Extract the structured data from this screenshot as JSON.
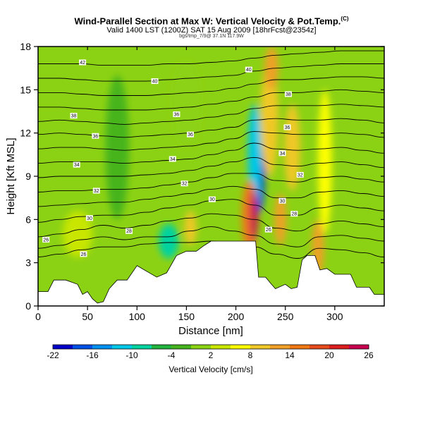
{
  "header": {
    "title": "Wind-Parallel Section at Max W: Vertical Velocity & Pot.Temp.",
    "copyright": "(C)",
    "valid_line": "Valid 1400 LST (1200Z) SAT 15 Aug 2009",
    "model_tag": "[18hrFcst@2354z]",
    "credit": "bgs/tmp_7/9@ 37.1N 117.9W"
  },
  "chart_data": {
    "type": "heatmap",
    "title": "Wind-Parallel Section at Max W: Vertical Velocity & Pot.Temp.",
    "xlabel": "Distance [nm]",
    "ylabel": "Height [Kft MSL]",
    "xlim": [
      0,
      350
    ],
    "ylim": [
      0,
      18
    ],
    "x_ticks": [
      "0",
      "50",
      "100",
      "150",
      "200",
      "250",
      "300"
    ],
    "x_tick_values": [
      0,
      50,
      100,
      150,
      200,
      250,
      300
    ],
    "y_ticks": [
      "0",
      "3",
      "6",
      "9",
      "12",
      "15",
      "18"
    ],
    "y_tick_values": [
      0,
      3,
      6,
      9,
      12,
      15,
      18
    ],
    "terrain": [
      [
        0,
        1
      ],
      [
        10,
        1
      ],
      [
        16,
        1.8
      ],
      [
        28,
        1.8
      ],
      [
        40,
        1.5
      ],
      [
        45,
        0.8
      ],
      [
        50,
        1
      ],
      [
        55,
        0.5
      ],
      [
        60,
        0.2
      ],
      [
        66,
        0.3
      ],
      [
        72,
        1.2
      ],
      [
        80,
        1.8
      ],
      [
        90,
        1.8
      ],
      [
        100,
        2.8
      ],
      [
        120,
        2
      ],
      [
        130,
        2.3
      ],
      [
        140,
        3.5
      ],
      [
        150,
        3.8
      ],
      [
        160,
        3.8
      ],
      [
        168,
        4.2
      ],
      [
        175,
        4.5
      ],
      [
        220,
        4.5
      ],
      [
        223,
        2
      ],
      [
        230,
        2
      ],
      [
        236,
        1.5
      ],
      [
        240,
        1.2
      ],
      [
        250,
        1.5
      ],
      [
        256,
        1.2
      ],
      [
        262,
        1.3
      ],
      [
        267,
        3.2
      ],
      [
        272,
        3.5
      ],
      [
        280,
        3.5
      ],
      [
        285,
        2.5
      ],
      [
        292,
        2.6
      ],
      [
        300,
        2.2
      ],
      [
        308,
        2.2
      ],
      [
        316,
        2.2
      ],
      [
        322,
        1.3
      ],
      [
        335,
        1.3
      ],
      [
        340,
        0.8
      ],
      [
        350,
        0.8
      ]
    ],
    "contours": [
      {
        "y": [
          3.4,
          3.6,
          3.9,
          4.1,
          4.1,
          4.3,
          4.4,
          4.4,
          4.5,
          4.3,
          4.1,
          3.6,
          3.3,
          4.0,
          3.9,
          3.7,
          3.4
        ]
      },
      {
        "y": [
          4.0,
          4.2,
          4.6,
          4.8,
          4.6,
          4.8,
          4.8,
          5.2,
          5.5,
          5.2,
          4.9,
          4.3,
          4.1,
          4.8,
          4.9,
          4.7,
          4.5
        ]
      },
      {
        "y": [
          4.8,
          5.0,
          5.3,
          5.6,
          5.4,
          5.6,
          5.9,
          6.1,
          6.4,
          6.3,
          6.0,
          5.4,
          5.2,
          5.7,
          5.9,
          5.7,
          5.5
        ]
      },
      {
        "y": [
          5.8,
          6.0,
          6.2,
          6.3,
          6.3,
          6.5,
          6.8,
          7.0,
          7.3,
          7.4,
          7.0,
          6.3,
          6.3,
          6.8,
          7.0,
          6.8,
          6.6
        ]
      },
      {
        "y": [
          6.9,
          7.0,
          7.1,
          7.2,
          7.2,
          7.4,
          7.6,
          7.8,
          8.1,
          8.3,
          8.1,
          7.5,
          7.5,
          7.9,
          8.0,
          7.8,
          7.6
        ]
      },
      {
        "y": [
          7.9,
          8.0,
          8.0,
          8.1,
          8.1,
          8.2,
          8.4,
          8.6,
          8.9,
          9.2,
          9.2,
          8.7,
          8.6,
          8.9,
          9.0,
          8.8,
          8.6
        ]
      },
      {
        "y": [
          8.9,
          9.0,
          9.0,
          9.0,
          9.0,
          9.1,
          9.2,
          9.4,
          9.7,
          10.0,
          10.3,
          9.8,
          9.7,
          9.9,
          10.0,
          9.8,
          9.6
        ]
      },
      {
        "y": [
          9.9,
          10.0,
          10.0,
          10.0,
          9.9,
          10.0,
          10.1,
          10.2,
          10.5,
          10.8,
          11.3,
          10.9,
          10.8,
          10.9,
          11.0,
          10.8,
          10.6
        ]
      },
      {
        "y": [
          10.9,
          11.0,
          11.0,
          10.9,
          10.8,
          10.9,
          11.0,
          11.1,
          11.3,
          11.6,
          12.1,
          12.0,
          11.9,
          11.9,
          12.0,
          11.9,
          11.7
        ]
      },
      {
        "y": [
          11.9,
          12.0,
          11.9,
          11.8,
          11.7,
          11.8,
          11.9,
          12.0,
          12.2,
          12.4,
          12.9,
          13.0,
          12.9,
          12.9,
          13.0,
          12.9,
          12.7
        ]
      },
      {
        "y": [
          12.8,
          12.9,
          12.8,
          12.7,
          12.6,
          12.7,
          12.8,
          12.9,
          13.1,
          13.3,
          13.7,
          13.9,
          13.9,
          13.9,
          14.0,
          13.9,
          13.8
        ]
      },
      {
        "y": [
          13.8,
          13.8,
          13.7,
          13.6,
          13.6,
          13.6,
          13.7,
          13.8,
          14.0,
          14.2,
          14.5,
          14.8,
          14.8,
          14.9,
          15.0,
          14.9,
          14.8
        ]
      },
      {
        "y": [
          14.8,
          14.8,
          14.7,
          14.6,
          14.6,
          14.6,
          14.7,
          14.8,
          14.9,
          15.1,
          15.4,
          15.7,
          15.7,
          15.8,
          15.9,
          15.9,
          15.8
        ]
      },
      {
        "y": [
          15.8,
          15.8,
          15.7,
          15.6,
          15.6,
          15.6,
          15.7,
          15.8,
          15.9,
          16.0,
          16.3,
          16.5,
          16.6,
          16.7,
          16.8,
          16.8,
          16.8
        ]
      },
      {
        "y": [
          16.8,
          16.8,
          16.8,
          16.7,
          16.7,
          16.7,
          16.8,
          16.8,
          16.9,
          17.0,
          17.2,
          17.4,
          17.5,
          17.6,
          17.7,
          17.7,
          17.7
        ]
      }
    ],
    "contour_labels": [
      {
        "text": "42",
        "x": 45,
        "y": 16.9
      },
      {
        "text": "40",
        "x": 118,
        "y": 15.6
      },
      {
        "text": "40",
        "x": 213,
        "y": 16.4
      },
      {
        "text": "38",
        "x": 36,
        "y": 13.2
      },
      {
        "text": "36",
        "x": 140,
        "y": 13.3
      },
      {
        "text": "38",
        "x": 253,
        "y": 14.7
      },
      {
        "text": "36",
        "x": 58,
        "y": 11.8
      },
      {
        "text": "36",
        "x": 154,
        "y": 11.9
      },
      {
        "text": "36",
        "x": 252,
        "y": 12.4
      },
      {
        "text": "34",
        "x": 39,
        "y": 9.8
      },
      {
        "text": "34",
        "x": 136,
        "y": 10.2
      },
      {
        "text": "34",
        "x": 247,
        "y": 10.6
      },
      {
        "text": "32",
        "x": 59,
        "y": 8.0
      },
      {
        "text": "32",
        "x": 148,
        "y": 8.5
      },
      {
        "text": "32",
        "x": 265,
        "y": 9.1
      },
      {
        "text": "30",
        "x": 52,
        "y": 6.1
      },
      {
        "text": "30",
        "x": 176,
        "y": 7.4
      },
      {
        "text": "30",
        "x": 247,
        "y": 7.3
      },
      {
        "text": "28",
        "x": 92,
        "y": 5.2
      },
      {
        "text": "28",
        "x": 259,
        "y": 6.4
      },
      {
        "text": "26",
        "x": 233,
        "y": 5.3
      },
      {
        "text": "26",
        "x": 8,
        "y": 4.6
      },
      {
        "text": "26",
        "x": 46,
        "y": 3.6
      }
    ],
    "colorbar": {
      "label": "Vertical Velocity [cm/s]",
      "tick_labels": [
        "-22",
        "-16",
        "-10",
        "-4",
        "2",
        "8",
        "14",
        "20",
        "26"
      ],
      "colors": [
        "#0000c8",
        "#0050e6",
        "#0090f0",
        "#00c8e6",
        "#00d2a0",
        "#22b43c",
        "#46b41e",
        "#8cd214",
        "#c8e600",
        "#ffff00",
        "#f0c828",
        "#f0a028",
        "#f07814",
        "#e64b1e",
        "#dc1e1e",
        "#c80050"
      ]
    },
    "anomalies": [
      {
        "x": 223,
        "y": 8.6,
        "rx": 6,
        "ry": 2.2,
        "color": "#0050e6"
      },
      {
        "x": 226,
        "y": 9.5,
        "rx": 4,
        "ry": 1.6,
        "color": "#0000c8"
      },
      {
        "x": 219,
        "y": 10.5,
        "rx": 7,
        "ry": 3.5,
        "color": "#00c8e6"
      },
      {
        "x": 214,
        "y": 6.2,
        "rx": 8,
        "ry": 2.5,
        "color": "#f07814"
      },
      {
        "x": 218,
        "y": 6.3,
        "rx": 4,
        "ry": 1.8,
        "color": "#c80050"
      },
      {
        "x": 234,
        "y": 13.0,
        "rx": 9,
        "ry": 4,
        "color": "#f0c828"
      },
      {
        "x": 236,
        "y": 16.5,
        "rx": 7,
        "ry": 1.5,
        "color": "#f0a028"
      },
      {
        "x": 257,
        "y": 11.0,
        "rx": 8,
        "ry": 3,
        "color": "#f0c828"
      },
      {
        "x": 290,
        "y": 10.0,
        "rx": 7,
        "ry": 5,
        "color": "#ffff00"
      },
      {
        "x": 283,
        "y": 4.0,
        "rx": 6,
        "ry": 2,
        "color": "#f0a028"
      },
      {
        "x": 245,
        "y": 6.0,
        "rx": 6,
        "ry": 1.8,
        "color": "#f0a028"
      },
      {
        "x": 154,
        "y": 5.4,
        "rx": 6,
        "ry": 1.2,
        "color": "#f0c828"
      },
      {
        "x": 132,
        "y": 4.5,
        "rx": 10,
        "ry": 1.2,
        "color": "#00d2a0"
      },
      {
        "x": 40,
        "y": 5.0,
        "rx": 15,
        "ry": 1.6,
        "color": "#c8e600"
      },
      {
        "x": 80,
        "y": 11.0,
        "rx": 12,
        "ry": 5,
        "color": "#46b41e"
      },
      {
        "x": 150,
        "y": 14.0,
        "rx": 15,
        "ry": 3,
        "color": "#8cd214"
      }
    ]
  }
}
